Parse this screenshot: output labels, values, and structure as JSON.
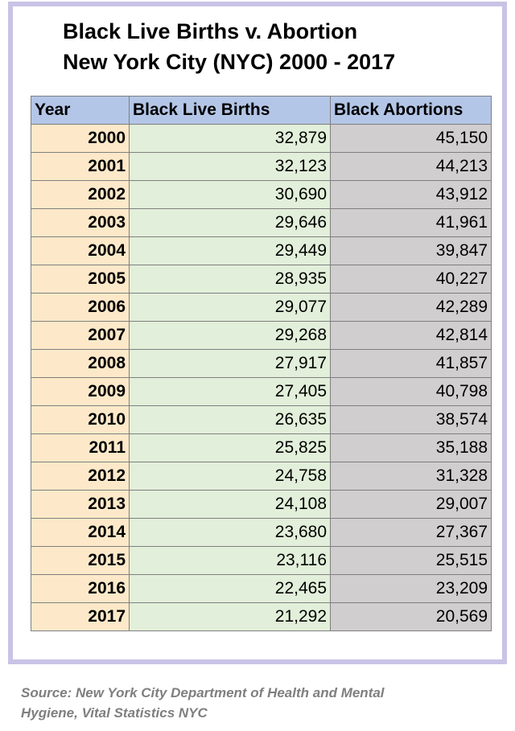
{
  "header": {
    "title_lines": [
      "Black Live Births v. Abortion",
      "New York City (NYC) 2000 - 2017"
    ]
  },
  "table": {
    "columns": [
      "Year",
      "Black Live Births",
      "Black Abortions"
    ],
    "rows": [
      [
        "2000",
        "32,879",
        "45,150"
      ],
      [
        "2001",
        "32,123",
        "44,213"
      ],
      [
        "2002",
        "30,690",
        "43,912"
      ],
      [
        "2003",
        "29,646",
        "41,961"
      ],
      [
        "2004",
        "29,449",
        "39,847"
      ],
      [
        "2005",
        "28,935",
        "40,227"
      ],
      [
        "2006",
        "29,077",
        "42,289"
      ],
      [
        "2007",
        "29,268",
        "42,814"
      ],
      [
        "2008",
        "27,917",
        "41,857"
      ],
      [
        "2009",
        "27,405",
        "40,798"
      ],
      [
        "2010",
        "26,635",
        "38,574"
      ],
      [
        "2011",
        "25,825",
        "35,188"
      ],
      [
        "2012",
        "24,758",
        "31,328"
      ],
      [
        "2013",
        "24,108",
        "29,007"
      ],
      [
        "2014",
        "23,680",
        "27,367"
      ],
      [
        "2015",
        "23,116",
        "25,515"
      ],
      [
        "2016",
        "22,465",
        "23,209"
      ],
      [
        "2017",
        "21,292",
        "20,569"
      ]
    ]
  },
  "footer": {
    "source_lines": [
      "Source: New York City Department of Health and Mental",
      "Hygiene, Vital Statistics NYC"
    ]
  }
}
